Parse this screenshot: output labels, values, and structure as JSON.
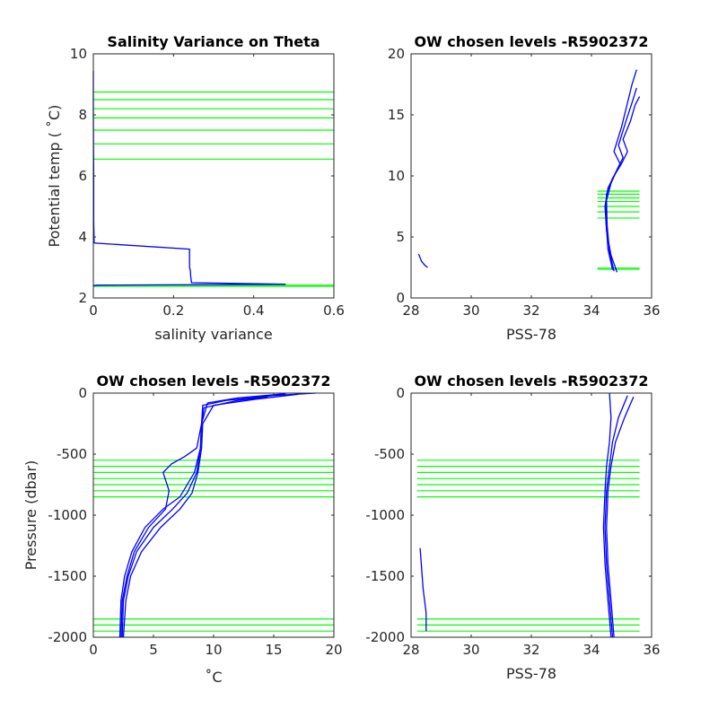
{
  "figure": {
    "type": "matlab-figure"
  },
  "colors": {
    "profiles": "#0000ff",
    "levels": "#00ff00",
    "axes": "#262626",
    "background": "#ffffff"
  },
  "chart_data": [
    {
      "type": "line",
      "title": "Salinity Variance on Theta",
      "xlabel": "salinity variance",
      "ylabel": "Potential temp ( ˚C)",
      "xlim": [
        0,
        0.6
      ],
      "ylim": [
        2,
        10
      ],
      "xticks": [
        0,
        0.2,
        0.4,
        0.6
      ],
      "xtick_labels": [
        "0",
        "0.2",
        "0.4",
        "0.6"
      ],
      "yticks": [
        2,
        4,
        6,
        8,
        10
      ],
      "ytick_labels": [
        "2",
        "4",
        "6",
        "8",
        "10"
      ],
      "levels_y": [
        2.38,
        2.42,
        6.55,
        7.05,
        7.5,
        7.9,
        8.2,
        8.5,
        8.75
      ],
      "series": [
        {
          "x": [
            0.0,
            0.0,
            0.001,
            0.001,
            0.002,
            0.24,
            0.24,
            0.242,
            0.243,
            0.245,
            0.48,
            0.01,
            0.0
          ],
          "y": [
            9.45,
            8.0,
            6.0,
            4.5,
            3.8,
            3.6,
            3.0,
            2.9,
            2.7,
            2.5,
            2.45,
            2.42,
            2.4
          ]
        }
      ]
    },
    {
      "type": "line",
      "title": "OW chosen levels -R5902372",
      "xlabel": "PSS-78",
      "ylabel": "",
      "xlim": [
        28,
        36
      ],
      "ylim": [
        0,
        20
      ],
      "xticks": [
        28,
        30,
        32,
        34,
        36
      ],
      "xtick_labels": [
        "28",
        "30",
        "32",
        "34",
        "36"
      ],
      "yticks": [
        0,
        5,
        10,
        15,
        20
      ],
      "ytick_labels": [
        "0",
        "5",
        "10",
        "15",
        "20"
      ],
      "levels_x": [
        34.2,
        35.6
      ],
      "levels_y": [
        2.35,
        2.45,
        6.55,
        7.05,
        7.5,
        7.9,
        8.2,
        8.5,
        8.75
      ],
      "series": [
        {
          "x": [
            28.25,
            28.35,
            28.45,
            28.55
          ],
          "y": [
            3.6,
            3.0,
            2.7,
            2.5
          ]
        },
        {
          "x": [
            34.85,
            34.65,
            34.5,
            34.45,
            34.55,
            34.75,
            34.95,
            34.75,
            35.0,
            35.2,
            35.35,
            35.5
          ],
          "y": [
            2.1,
            3.5,
            5.5,
            7.5,
            9.0,
            10.0,
            11.0,
            12.0,
            14.0,
            16.0,
            17.5,
            18.7
          ]
        },
        {
          "x": [
            34.75,
            34.6,
            34.52,
            34.5,
            34.65,
            34.85,
            35.05,
            34.9,
            35.15,
            35.35,
            35.5
          ],
          "y": [
            2.2,
            3.8,
            6.0,
            8.0,
            9.4,
            10.5,
            11.5,
            12.5,
            14.5,
            16.0,
            17.2
          ]
        },
        {
          "x": [
            34.7,
            34.55,
            34.48,
            34.5,
            34.7,
            35.0,
            35.2,
            35.05,
            35.3,
            35.45,
            35.6
          ],
          "y": [
            2.3,
            4.0,
            6.5,
            8.5,
            9.8,
            11.0,
            12.0,
            13.0,
            14.5,
            15.8,
            16.5
          ]
        }
      ]
    },
    {
      "type": "line",
      "title": "OW chosen levels -R5902372",
      "xlabel": "˚C",
      "ylabel": "Pressure (dbar)",
      "xlim": [
        0,
        20
      ],
      "ylim": [
        -2000,
        0
      ],
      "xticks": [
        0,
        5,
        10,
        15,
        20
      ],
      "xtick_labels": [
        "0",
        "5",
        "10",
        "15",
        "20"
      ],
      "yticks": [
        -2000,
        -1500,
        -1000,
        -500,
        0
      ],
      "ytick_labels": [
        "-2000",
        "-1500",
        "-1000",
        "-500",
        "0"
      ],
      "levels_y": [
        -550,
        -600,
        -650,
        -700,
        -750,
        -800,
        -850,
        -1850,
        -1900,
        -1950
      ],
      "series": [
        {
          "x": [
            2.2,
            2.3,
            2.6,
            3.2,
            4.3,
            5.8,
            7.2,
            8.4,
            8.9,
            9.0,
            9.1,
            11.0,
            15.0,
            18.5
          ],
          "y": [
            -2000,
            -1700,
            -1500,
            -1300,
            -1100,
            -950,
            -850,
            -650,
            -450,
            -250,
            -100,
            -60,
            -20,
            0
          ]
        },
        {
          "x": [
            2.4,
            2.5,
            2.9,
            3.6,
            5.0,
            6.6,
            7.8,
            8.6,
            8.9,
            9.0,
            9.5,
            12.0,
            16.0
          ],
          "y": [
            -2000,
            -1700,
            -1500,
            -1300,
            -1100,
            -950,
            -820,
            -650,
            -450,
            -250,
            -80,
            -40,
            -5
          ]
        },
        {
          "x": [
            2.5,
            2.7,
            3.1,
            4.0,
            5.6,
            7.2,
            8.2,
            8.7,
            9.0,
            9.1,
            10.0,
            13.5,
            17.0
          ],
          "y": [
            -2000,
            -1700,
            -1500,
            -1300,
            -1100,
            -950,
            -820,
            -650,
            -450,
            -250,
            -100,
            -50,
            -10
          ]
        },
        {
          "x": [
            2.3,
            2.4,
            2.8,
            3.4,
            4.6,
            6.0,
            6.3,
            5.8,
            6.5,
            7.6,
            8.6,
            9.0,
            9.2,
            12.0,
            14.5
          ],
          "y": [
            -2000,
            -1700,
            -1500,
            -1300,
            -1100,
            -950,
            -800,
            -650,
            -580,
            -520,
            -450,
            -250,
            -120,
            -60,
            -30
          ]
        }
      ]
    },
    {
      "type": "line",
      "title": "OW chosen levels -R5902372",
      "xlabel": "PSS-78",
      "ylabel": "",
      "xlim": [
        28,
        36
      ],
      "ylim": [
        -2000,
        0
      ],
      "xticks": [
        28,
        30,
        32,
        34,
        36
      ],
      "xtick_labels": [
        "28",
        "30",
        "32",
        "34",
        "36"
      ],
      "yticks": [
        -2000,
        -1500,
        -1000,
        -500,
        0
      ],
      "ytick_labels": [
        "-2000",
        "-1500",
        "-1000",
        "-500",
        "0"
      ],
      "levels_x": [
        28.2,
        35.6
      ],
      "levels_y": [
        -550,
        -600,
        -650,
        -700,
        -750,
        -800,
        -850,
        -1850,
        -1900,
        -1950
      ],
      "series": [
        {
          "x": [
            28.3,
            28.4,
            28.5,
            28.5
          ],
          "y": [
            -1270,
            -1600,
            -1800,
            -1950
          ]
        },
        {
          "x": [
            34.65,
            34.55,
            34.45,
            34.4,
            34.45,
            34.5,
            34.6,
            34.65,
            34.6
          ],
          "y": [
            -2000,
            -1700,
            -1400,
            -1100,
            -800,
            -600,
            -400,
            -200,
            0
          ]
        },
        {
          "x": [
            34.75,
            34.65,
            34.55,
            34.5,
            34.55,
            34.65,
            34.8,
            35.1,
            35.4
          ],
          "y": [
            -2000,
            -1700,
            -1400,
            -1100,
            -800,
            -600,
            -400,
            -200,
            -30
          ]
        },
        {
          "x": [
            34.7,
            34.6,
            34.5,
            34.45,
            34.5,
            34.6,
            34.7,
            34.9,
            35.2
          ],
          "y": [
            -2000,
            -1700,
            -1400,
            -1100,
            -800,
            -600,
            -400,
            -200,
            -20
          ]
        }
      ]
    }
  ]
}
